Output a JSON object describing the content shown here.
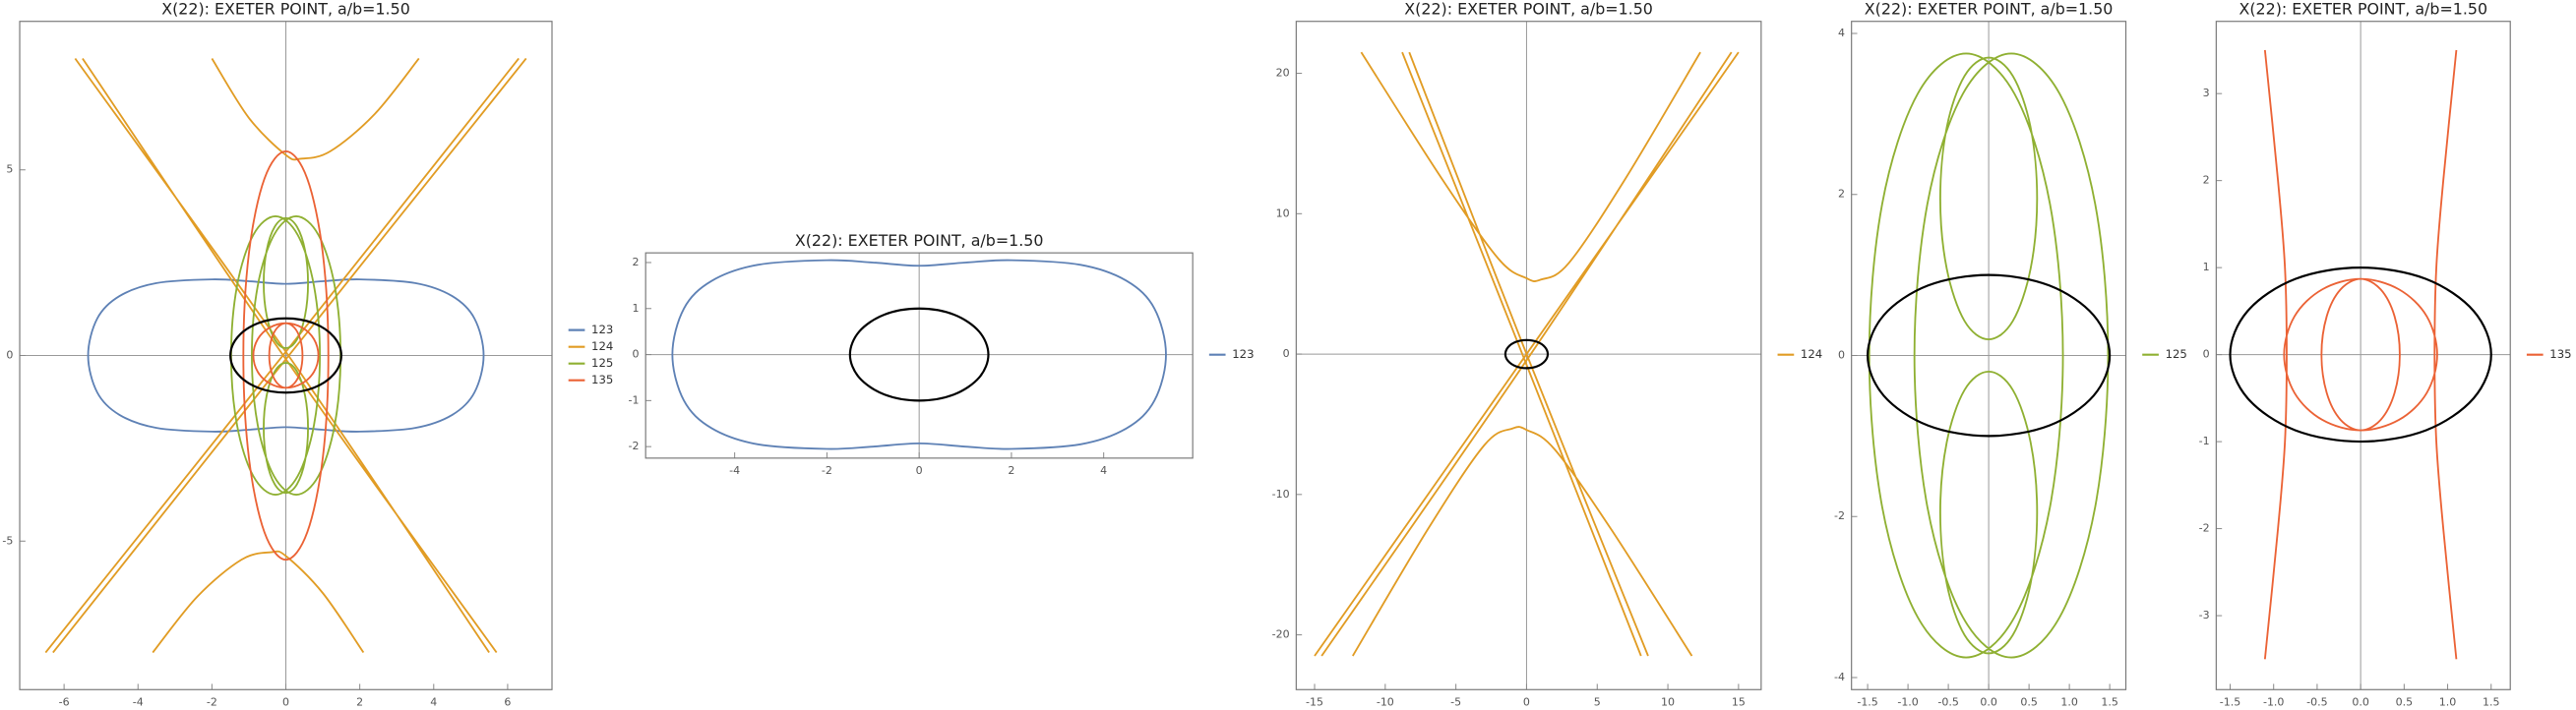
{
  "chart_data": [
    {
      "type": "curve",
      "title": "X(22): EXETER POINT, a/b=1.50",
      "xlim": [
        -7.2,
        7.2
      ],
      "ylim": [
        -9,
        9
      ],
      "xticks": [
        -6,
        -4,
        -2,
        0,
        2,
        4,
        6
      ],
      "yticks": [
        -5,
        0,
        5
      ],
      "series": [
        {
          "name": "123",
          "color": "#5e81b5",
          "x": [
            5.35,
            5.1,
            4.5,
            3.5,
            2,
            1,
            0,
            -1,
            -2,
            -3.5,
            -4.5,
            -5.1,
            -5.35,
            -5.1,
            -4.5,
            -3.5,
            -2,
            -1,
            0,
            1,
            2,
            3.5,
            4.5,
            5.1,
            5.35
          ],
          "values": [
            0,
            1,
            1.6,
            1.95,
            2.05,
            2,
            1.93,
            2,
            2.05,
            1.95,
            1.6,
            1,
            0,
            -1,
            -1.6,
            -1.95,
            -2.05,
            -2,
            -1.93,
            -2,
            -2.05,
            -1.95,
            -1.6,
            -1,
            0
          ]
        },
        {
          "name": "124",
          "color": "#e19c24",
          "x": [
            -2.0,
            -1.0,
            0,
            0.4,
            1.2,
            2.4,
            3.6,
            null,
            2.1,
            1.0,
            0,
            -0.4,
            -1.2,
            -2.4,
            -3.6,
            null,
            -6.5,
            0,
            6.3,
            null,
            -6.3,
            0,
            6.5,
            null,
            -5.7,
            0,
            5.5,
            null,
            -5.5,
            0,
            5.7
          ],
          "values": [
            8,
            6.4,
            5.4,
            5.3,
            5.5,
            6.5,
            8,
            null,
            -8,
            -6.4,
            -5.4,
            -5.3,
            -5.5,
            -6.5,
            -8,
            null,
            -8,
            0.1,
            8,
            null,
            -8,
            -0.1,
            8,
            null,
            8,
            0.1,
            -8,
            null,
            8,
            -0.1,
            -8
          ]
        },
        {
          "name": "125",
          "color": "#8fb032",
          "x": [
            0.92,
            0.76,
            0.32,
            -0.28,
            -0.88,
            -1.32,
            -1.48,
            -1.32,
            -0.88,
            -0.28,
            0.32,
            0.76,
            0.92,
            null,
            1.48,
            1.32,
            0.88,
            0.28,
            -0.32,
            -0.76,
            -0.92,
            -0.76,
            -0.32,
            0.28,
            0.88,
            1.32,
            1.48,
            null,
            0.6,
            0.52,
            0.3,
            0,
            -0.3,
            -0.52,
            -0.6,
            -0.52,
            -0.3,
            0,
            0.3,
            0.52,
            0.6,
            null,
            0.6,
            0.52,
            0.3,
            0,
            -0.3,
            -0.52,
            -0.6,
            -0.52,
            -0.3,
            0,
            0.3,
            0.52,
            0.6
          ],
          "values": [
            0,
            1.88,
            3.25,
            3.75,
            3.25,
            1.88,
            0,
            -1.88,
            -3.25,
            -3.75,
            -3.25,
            -1.88,
            0,
            null,
            0,
            1.88,
            3.25,
            3.75,
            3.25,
            1.88,
            0,
            -1.88,
            -3.25,
            -3.75,
            -3.25,
            -1.88,
            0,
            null,
            1.95,
            2.83,
            3.47,
            3.7,
            3.47,
            2.83,
            1.95,
            1.08,
            0.43,
            0.2,
            0.43,
            1.08,
            1.95,
            null,
            -1.95,
            -2.83,
            -3.47,
            -3.7,
            -3.47,
            -2.83,
            -1.95,
            -1.08,
            -0.43,
            -0.2,
            -0.43,
            -1.08,
            -1.95
          ]
        },
        {
          "name": "135",
          "color": "#eb6235",
          "x": [
            1.15,
            1,
            0.58,
            0,
            -0.58,
            -1,
            -1.15,
            -1,
            -0.58,
            0,
            0.58,
            1,
            1.15,
            null,
            0.45,
            0.39,
            0.23,
            0,
            -0.23,
            -0.39,
            -0.45,
            -0.39,
            -0.23,
            0,
            0.23,
            0.39,
            0.45,
            null,
            0.88,
            0.76,
            0.44,
            0,
            -0.44,
            -0.76,
            -0.88,
            -0.76,
            -0.44,
            0,
            0.44,
            0.76,
            0.88
          ],
          "values": [
            0,
            2.75,
            4.76,
            5.5,
            4.76,
            2.75,
            0,
            -2.75,
            -4.76,
            -5.5,
            -4.76,
            -2.75,
            0,
            null,
            0,
            0.44,
            0.75,
            0.87,
            0.75,
            0.44,
            0,
            -0.44,
            -0.75,
            -0.87,
            -0.75,
            -0.44,
            0,
            null,
            0,
            0.44,
            0.75,
            0.87,
            0.75,
            0.44,
            0,
            -0.44,
            -0.75,
            -0.87,
            -0.75,
            -0.44,
            0
          ]
        },
        {
          "color": "#000000",
          "x": [
            1.5,
            1.3,
            0.75,
            0,
            -0.75,
            -1.3,
            -1.5,
            -1.3,
            -0.75,
            0,
            0.75,
            1.3,
            1.5
          ],
          "values": [
            0,
            0.5,
            0.87,
            1,
            0.87,
            0.5,
            0,
            -0.5,
            -0.87,
            -1,
            -0.87,
            -0.5,
            0
          ]
        }
      ]
    },
    {
      "type": "curve",
      "title": "X(22): EXETER POINT, a/b=1.50",
      "xlim": [
        -5.93,
        5.93
      ],
      "ylim": [
        -2.25,
        2.21
      ],
      "xticks": [
        -4,
        -2,
        0,
        2,
        4
      ],
      "yticks": [
        -2,
        -1,
        0,
        1,
        2
      ],
      "series": [
        {
          "name": "123",
          "color": "#5e81b5",
          "x": [
            5.35,
            5.1,
            4.5,
            3.5,
            2,
            1,
            0,
            -1,
            -2,
            -3.5,
            -4.5,
            -5.1,
            -5.35,
            -5.1,
            -4.5,
            -3.5,
            -2,
            -1,
            0,
            1,
            2,
            3.5,
            4.5,
            5.1,
            5.35
          ],
          "values": [
            0,
            1,
            1.6,
            1.95,
            2.05,
            2,
            1.93,
            2,
            2.05,
            1.95,
            1.6,
            1,
            0,
            -1,
            -1.6,
            -1.95,
            -2.05,
            -2,
            -1.93,
            -2,
            -2.05,
            -1.95,
            -1.6,
            -1,
            0
          ]
        },
        {
          "color": "#000000",
          "x": [
            1.5,
            1.3,
            0.75,
            0,
            -0.75,
            -1.3,
            -1.5,
            -1.3,
            -0.75,
            0,
            0.75,
            1.3,
            1.5
          ],
          "values": [
            0,
            0.5,
            0.87,
            1,
            0.87,
            0.5,
            0,
            -0.5,
            -0.87,
            -1,
            -0.87,
            -0.5,
            0
          ]
        }
      ]
    },
    {
      "type": "curve",
      "title": "X(22): EXETER POINT, a/b=1.50",
      "xlim": [
        -16.3,
        16.6
      ],
      "ylim": [
        -23.9,
        23.7
      ],
      "xticks": [
        -15,
        -10,
        -5,
        0,
        5,
        10,
        15
      ],
      "yticks": [
        -20,
        -10,
        0,
        10,
        20
      ],
      "series": [
        {
          "name": "124",
          "color": "#e19c24",
          "x": [
            -11.7,
            -6,
            -2,
            0,
            1,
            3,
            7,
            12.3,
            null,
            11.7,
            6,
            2,
            0,
            -1,
            -3,
            -7,
            -12.3,
            null,
            -15,
            0,
            15,
            null,
            -14.5,
            0.3,
            14.5,
            null,
            8.6,
            0,
            -8.3,
            null,
            8.1,
            -0.3,
            -8.8
          ],
          "values": [
            21.5,
            12.5,
            6.8,
            5.4,
            5.3,
            6.5,
            12.5,
            21.5,
            null,
            -21.5,
            -12.5,
            -6.8,
            -5.4,
            -5.3,
            -6.5,
            -12.5,
            -21.5,
            null,
            -21.5,
            0,
            21.5,
            null,
            -21.5,
            0,
            21.5,
            null,
            -21.5,
            0,
            21.5,
            null,
            -21.5,
            0,
            21.5
          ]
        },
        {
          "color": "#000000",
          "x": [
            1.5,
            1.3,
            0.75,
            0,
            -0.75,
            -1.3,
            -1.5,
            -1.3,
            -0.75,
            0,
            0.75,
            1.3,
            1.5
          ],
          "values": [
            0,
            0.5,
            0.87,
            1,
            0.87,
            0.5,
            0,
            -0.5,
            -0.87,
            -1,
            -0.87,
            -0.5,
            0
          ]
        }
      ]
    },
    {
      "type": "curve",
      "title": "X(22): EXETER POINT, a/b=1.50",
      "xlim": [
        -1.7,
        1.7
      ],
      "ylim": [
        -4.15,
        4.15
      ],
      "xticks": [
        -1.5,
        {
          "value": -1,
          "label": "-1.0"
        },
        -0.5,
        {
          "value": 0,
          "label": "0.0"
        },
        0.5,
        {
          "value": 1,
          "label": "1.0"
        },
        1.5
      ],
      "yticks": [
        -4,
        -2,
        0,
        2,
        4
      ],
      "series": [
        {
          "name": "125",
          "color": "#8fb032",
          "x": [
            0.92,
            0.76,
            0.32,
            -0.28,
            -0.88,
            -1.32,
            -1.48,
            -1.32,
            -0.88,
            -0.28,
            0.32,
            0.76,
            0.92,
            null,
            1.48,
            1.32,
            0.88,
            0.28,
            -0.32,
            -0.76,
            -0.92,
            -0.76,
            -0.32,
            0.28,
            0.88,
            1.32,
            1.48,
            null,
            0.6,
            0.52,
            0.3,
            0,
            -0.3,
            -0.52,
            -0.6,
            -0.52,
            -0.3,
            0,
            0.3,
            0.52,
            0.6,
            null,
            0.6,
            0.52,
            0.3,
            0,
            -0.3,
            -0.52,
            -0.6,
            -0.52,
            -0.3,
            0,
            0.3,
            0.52,
            0.6
          ],
          "values": [
            0,
            1.88,
            3.25,
            3.75,
            3.25,
            1.88,
            0,
            -1.88,
            -3.25,
            -3.75,
            -3.25,
            -1.88,
            0,
            null,
            0,
            1.88,
            3.25,
            3.75,
            3.25,
            1.88,
            0,
            -1.88,
            -3.25,
            -3.75,
            -3.25,
            -1.88,
            0,
            null,
            1.95,
            2.83,
            3.47,
            3.7,
            3.47,
            2.83,
            1.95,
            1.08,
            0.43,
            0.2,
            0.43,
            1.08,
            1.95,
            null,
            -1.95,
            -2.83,
            -3.47,
            -3.7,
            -3.47,
            -2.83,
            -1.95,
            -1.08,
            -0.43,
            -0.2,
            -0.43,
            -1.08,
            -1.95
          ]
        },
        {
          "color": "#000000",
          "x": [
            1.5,
            1.3,
            0.75,
            0,
            -0.75,
            -1.3,
            -1.5,
            -1.3,
            -0.75,
            0,
            0.75,
            1.3,
            1.5
          ],
          "values": [
            0,
            0.5,
            0.87,
            1,
            0.87,
            0.5,
            0,
            -0.5,
            -0.87,
            -1,
            -0.87,
            -0.5,
            0
          ]
        }
      ]
    },
    {
      "type": "curve",
      "title": "X(22): EXETER POINT, a/b=1.50",
      "xlim": [
        -1.66,
        1.72
      ],
      "ylim": [
        -3.85,
        3.83
      ],
      "xticks": [
        -1.5,
        {
          "value": -1,
          "label": "-1.0"
        },
        -0.5,
        {
          "value": 0,
          "label": "0.0"
        },
        0.5,
        {
          "value": 1,
          "label": "1.0"
        },
        1.5
      ],
      "yticks": [
        -3,
        -2,
        -1,
        0,
        1,
        2,
        3
      ],
      "series": [
        {
          "name": "135",
          "color": "#eb6235",
          "x": [
            -1.1,
            -0.95,
            -0.87,
            -0.85,
            -0.87,
            -0.95,
            -1.1,
            null,
            1.1,
            0.95,
            0.87,
            0.85,
            0.87,
            0.95,
            1.1,
            null,
            0.45,
            0.39,
            0.23,
            0,
            -0.23,
            -0.39,
            -0.45,
            -0.39,
            -0.23,
            0,
            0.23,
            0.39,
            0.45,
            null,
            0.88,
            0.76,
            0.44,
            0,
            -0.44,
            -0.76,
            -0.88,
            -0.76,
            -0.44,
            0,
            0.44,
            0.76,
            0.88
          ],
          "values": [
            3.5,
            2,
            1,
            0,
            -1,
            -2,
            -3.5,
            null,
            3.5,
            2,
            1,
            0,
            -1,
            -2,
            -3.5,
            null,
            0,
            0.44,
            0.75,
            0.87,
            0.75,
            0.44,
            0,
            -0.44,
            -0.75,
            -0.87,
            -0.75,
            -0.44,
            0,
            null,
            0,
            0.44,
            0.75,
            0.87,
            0.75,
            0.44,
            0,
            -0.44,
            -0.75,
            -0.87,
            -0.75,
            -0.44,
            0
          ]
        },
        {
          "color": "#000000",
          "x": [
            1.5,
            1.3,
            0.75,
            0,
            -0.75,
            -1.3,
            -1.5,
            -1.3,
            -0.75,
            0,
            0.75,
            1.3,
            1.5
          ],
          "values": [
            0,
            0.5,
            0.87,
            1,
            0.87,
            0.5,
            0,
            -0.5,
            -0.87,
            -1,
            -0.87,
            -0.5,
            0
          ]
        }
      ]
    }
  ]
}
